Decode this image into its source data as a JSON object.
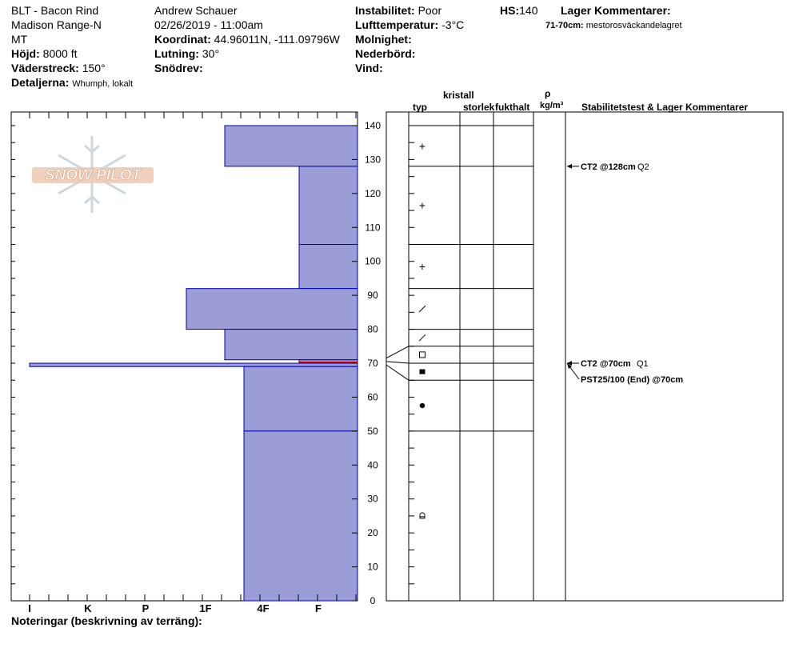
{
  "header": {
    "location": "BLT - Bacon Rind",
    "range": "Madison Range-N",
    "state": "MT",
    "elevation_label": "Höjd:",
    "elevation": "8000 ft",
    "aspect_label": "Väderstreck:",
    "aspect": "150°",
    "details_label": "Detaljerna:",
    "details": "Whumph, lokalt",
    "observer": "Andrew Schauer",
    "datetime": "02/26/2019 - 11:00am",
    "coord_label": "Koordinat:",
    "coord": "44.96011N, -111.09796W",
    "slope_label": "Lutning:",
    "slope": "30°",
    "drift_label": "Snödrev:",
    "drift": "",
    "stability_label": "Instabilitet:",
    "stability": "Poor",
    "air_temp_label": "Lufttemperatur:",
    "air_temp": "-3°C",
    "sky_label": "Molnighet:",
    "sky": "",
    "precip_label": "Nederbörd:",
    "precip": "",
    "wind_label": "Vind:",
    "wind": "",
    "hs_label": "HS:",
    "hs": "140",
    "layer_comments_label": "Lager Kommentarer:",
    "layer_comment_range": "71-70cm:",
    "layer_comment_text": "mestorosväckandelagret"
  },
  "logo_text": "SNOW PILOT",
  "column_headers": {
    "crystal": "kristall",
    "type": "typ",
    "size": "storlek",
    "moisture": "fukthalt",
    "density_symbol": "ρ",
    "density_unit": "kg/m³",
    "stability": "Stabilitetstest & Lager Kommentarer"
  },
  "footer": {
    "notes_label": "Noteringar (beskrivning av terräng):"
  },
  "colors": {
    "bar_fill": "#9c9cd6",
    "bar_line": "#0000aa",
    "weak_layer": "#cc0000"
  },
  "chart_data": {
    "type": "bar",
    "title": "",
    "xlabel": "",
    "ylabel": "",
    "ylim": [
      0,
      140
    ],
    "y_ticks": [
      "0",
      "10",
      "20",
      "30",
      "40",
      "50",
      "60",
      "70",
      "80",
      "90",
      "100",
      "110",
      "120",
      "130",
      "140"
    ],
    "x_ticks": [
      "I",
      "K",
      "P",
      "1F",
      "4F",
      "F"
    ],
    "series": [
      {
        "top": 140,
        "bottom": 128,
        "hardness": "1F-"
      },
      {
        "top": 128,
        "bottom": 105,
        "hardness": "F+"
      },
      {
        "top": 105,
        "bottom": 92,
        "hardness": "F+"
      },
      {
        "top": 92,
        "bottom": 80,
        "hardness": "1F+"
      },
      {
        "top": 80,
        "bottom": 71,
        "hardness": "1F-"
      },
      {
        "top": 71,
        "bottom": 70,
        "hardness": "F+",
        "weak": true
      },
      {
        "top": 70,
        "bottom": 69,
        "hardness": "I"
      },
      {
        "top": 69,
        "bottom": 50,
        "hardness": "4F+"
      },
      {
        "top": 50,
        "bottom": 0,
        "hardness": "4F+"
      }
    ],
    "layer_boundaries": [
      140,
      128,
      105,
      92,
      80,
      75,
      70,
      65,
      50,
      0
    ],
    "grain_types": [
      {
        "y": 134,
        "glyph": "+"
      },
      {
        "y": 116.5,
        "glyph": "+"
      },
      {
        "y": 98.5,
        "glyph": "+"
      },
      {
        "y": 86,
        "glyph": "/"
      },
      {
        "y": 77.5,
        "glyph": "/"
      },
      {
        "y": 72.5,
        "glyph": "□"
      },
      {
        "y": 67.5,
        "glyph": "■"
      },
      {
        "y": 57.5,
        "glyph": "●"
      },
      {
        "y": 25,
        "glyph": "^"
      }
    ],
    "stability_tests": [
      {
        "y": 128,
        "label": "CT2 @128cm",
        "quality": "Q2"
      },
      {
        "y": 70,
        "label": "CT2 @70cm",
        "quality": "Q1"
      },
      {
        "y": 70,
        "label": "PST25/100 (End) @70cm",
        "quality": ""
      }
    ]
  }
}
